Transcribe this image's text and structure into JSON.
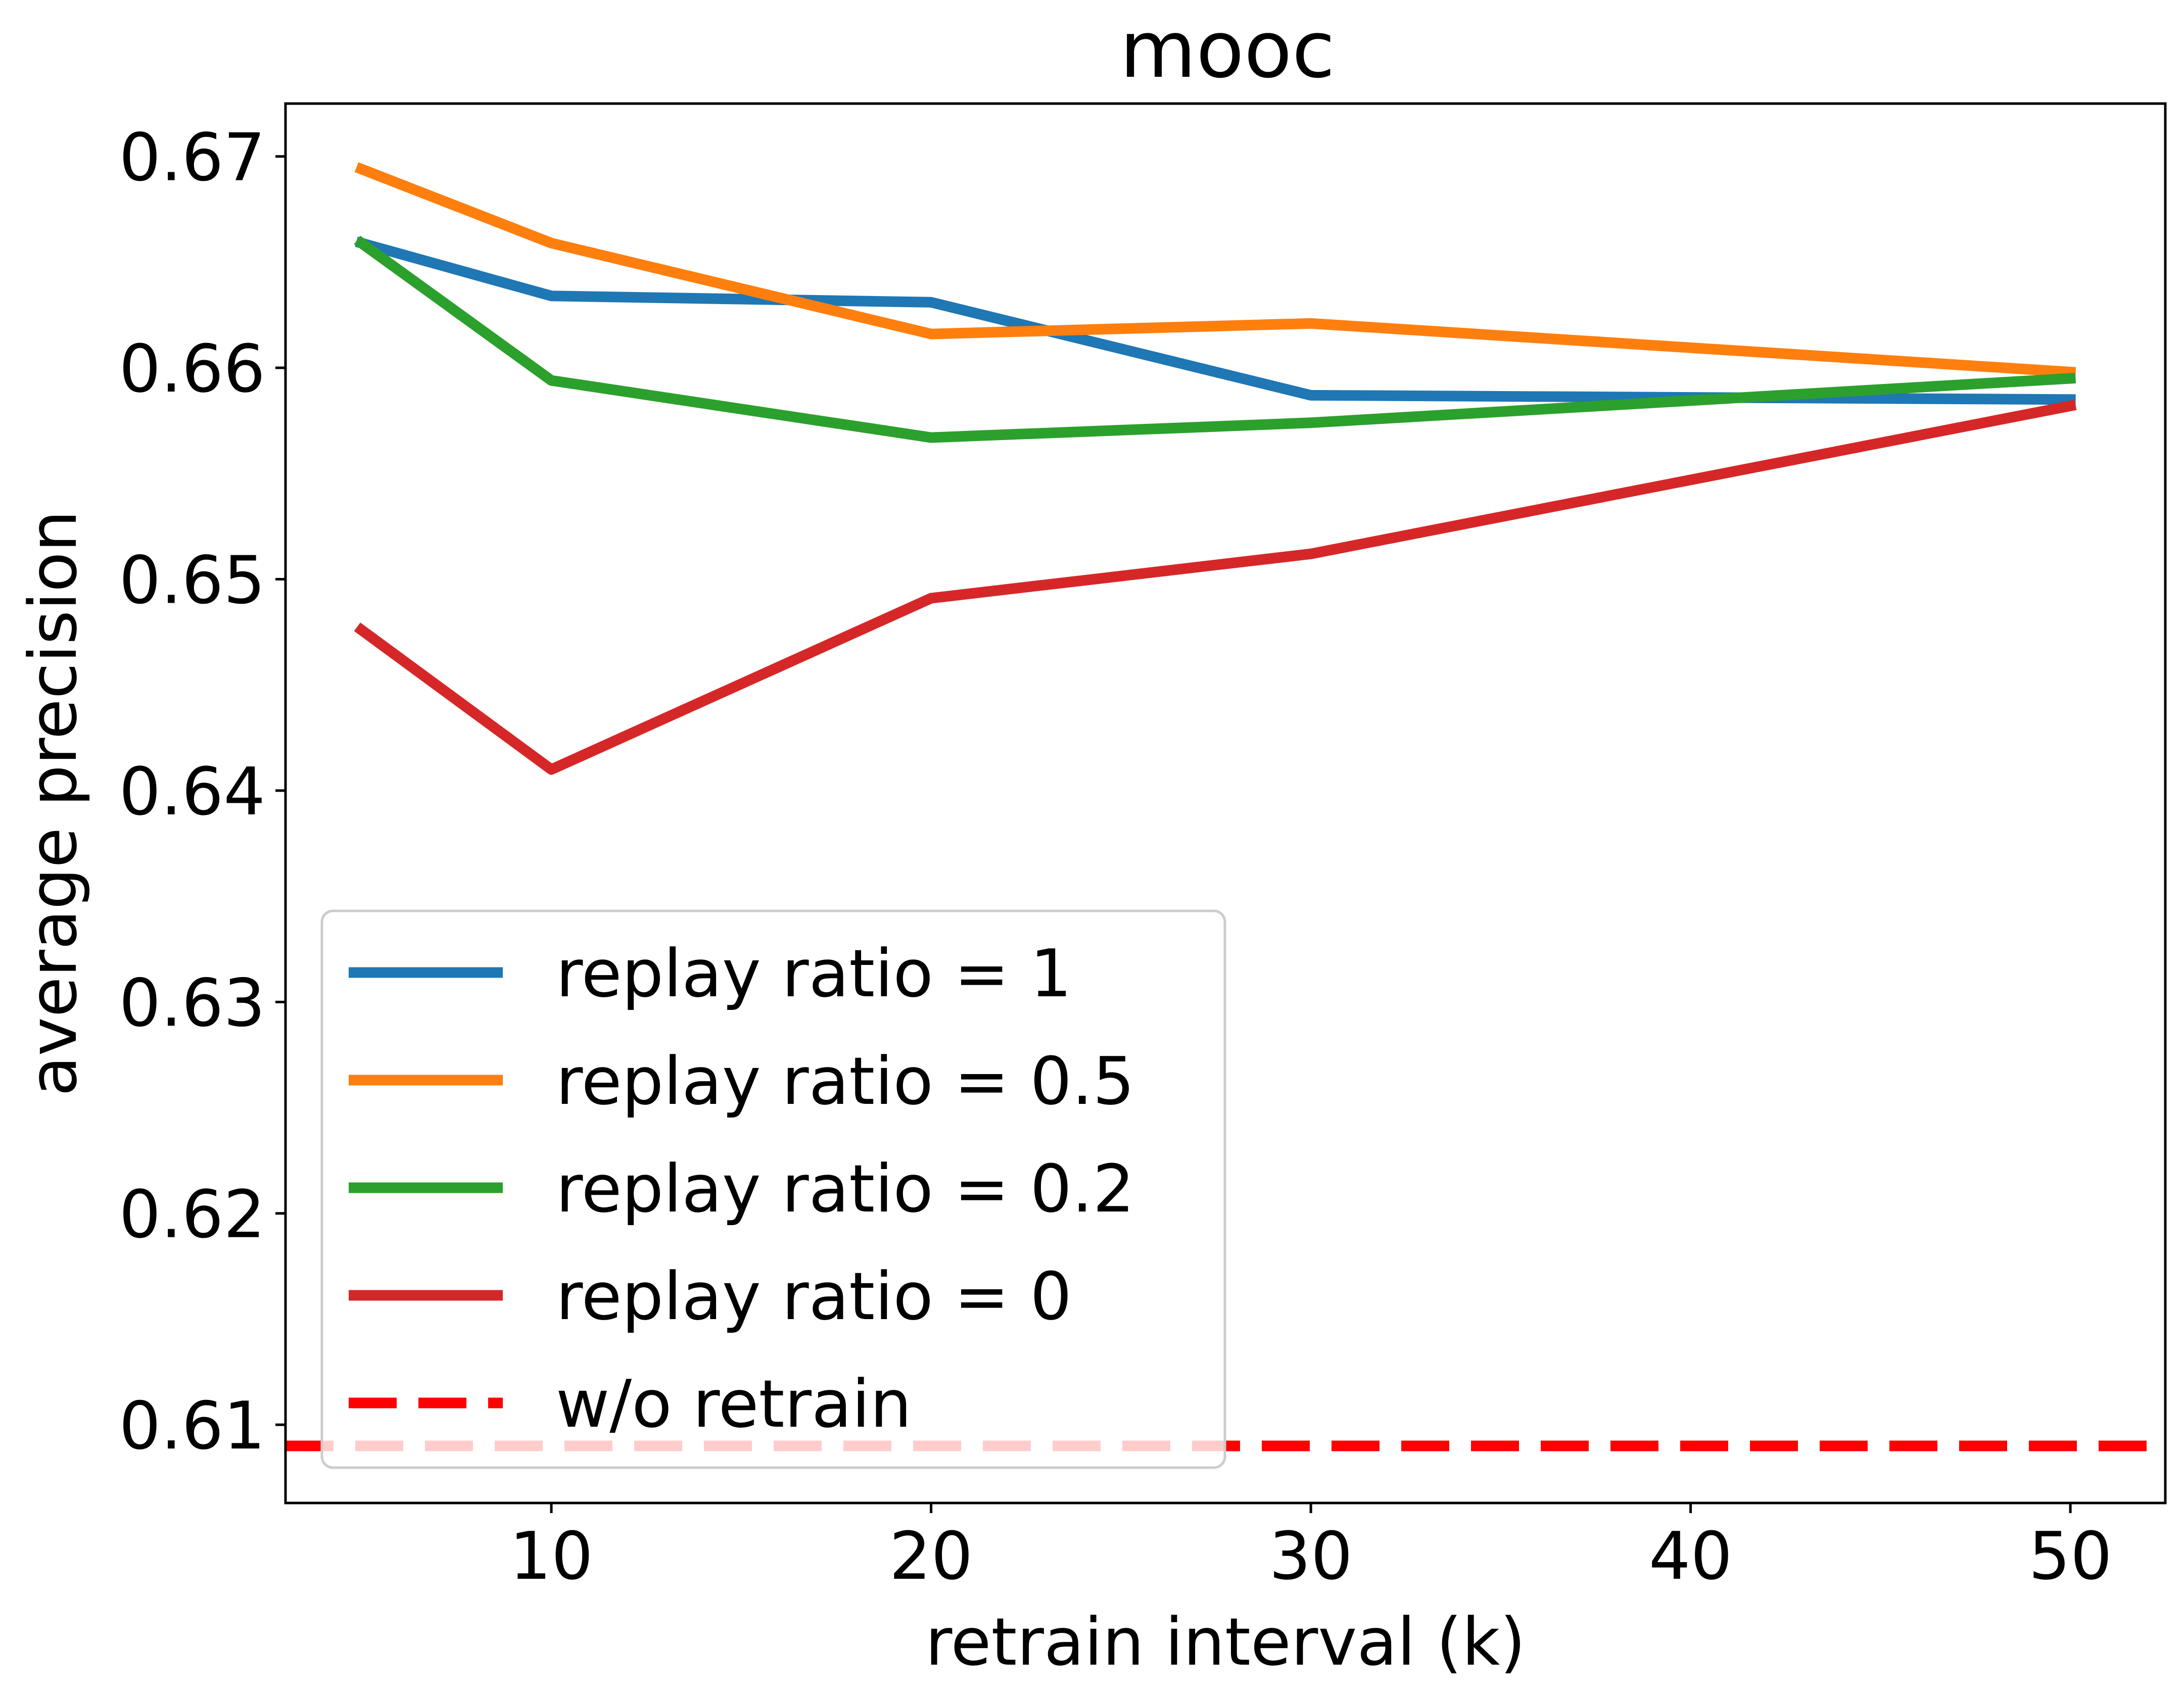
{
  "chart_data": {
    "type": "line",
    "title": "mooc",
    "xlabel": "retrain interval (k)",
    "ylabel": "average precision",
    "xlim": [
      3,
      52.5
    ],
    "ylim": [
      0.6063,
      0.6725
    ],
    "xticks": [
      10,
      20,
      30,
      40,
      50
    ],
    "yticks": [
      0.61,
      0.62,
      0.63,
      0.64,
      0.65,
      0.66,
      0.67
    ],
    "x": [
      5,
      10,
      20,
      30,
      50
    ],
    "series": [
      {
        "name": "replay ratio = 1",
        "color": "#1f77b4",
        "values": [
          0.6659,
          0.6634,
          0.6631,
          0.6587,
          0.6585
        ]
      },
      {
        "name": "replay ratio = 0.5",
        "color": "#ff7f0e",
        "values": [
          0.6694,
          0.6659,
          0.6616,
          0.6621,
          0.6598
        ]
      },
      {
        "name": "replay ratio = 0.2",
        "color": "#2ca02c",
        "values": [
          0.6659,
          0.6594,
          0.6567,
          0.6574,
          0.6595
        ]
      },
      {
        "name": "replay ratio = 0",
        "color": "#d62728",
        "values": [
          0.6476,
          0.641,
          0.6491,
          0.6512,
          0.6582
        ]
      }
    ],
    "reference_line": {
      "name": "w/o retrain",
      "y": 0.609,
      "color": "#ff0000",
      "style": "dashed"
    },
    "grid": false,
    "legend": "lower-left"
  }
}
